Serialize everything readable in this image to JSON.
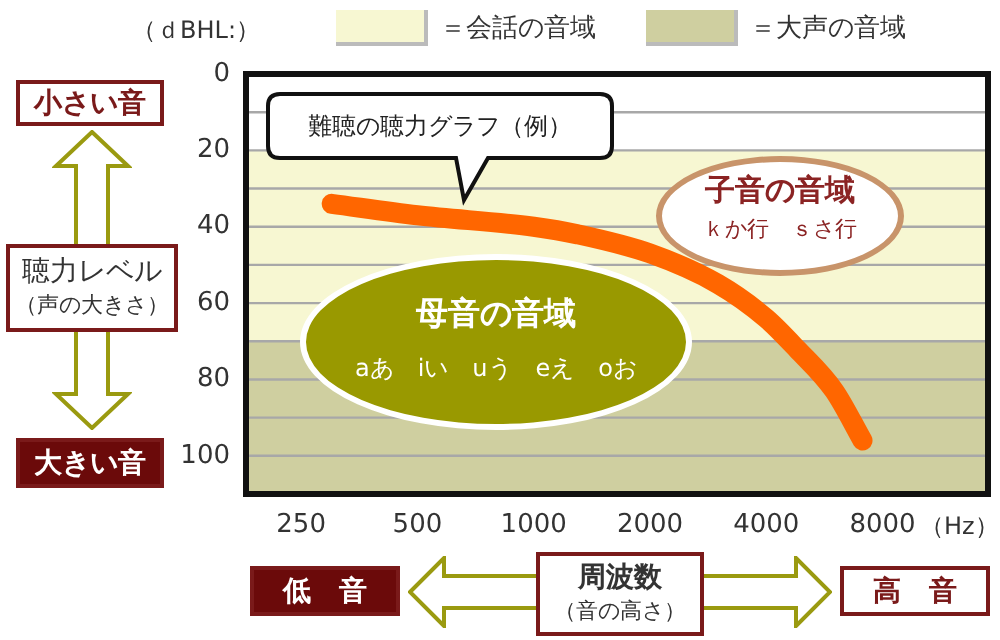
{
  "chart_data": {
    "type": "line",
    "xlabel": "周波数",
    "ylabel": "聴力レベル",
    "x": [
      300,
      500,
      1000,
      1300,
      2000,
      3000,
      4000,
      4800,
      6000,
      7100
    ],
    "series": [
      {
        "color": "#ff6600",
        "values": [
          34,
          37,
          40,
          42,
          47,
          55,
          64,
          72,
          83,
          96
        ]
      }
    ],
    "log": "x",
    "xlim": [
      180,
      15000
    ],
    "xticks": [
      250,
      500,
      1000,
      2000,
      4000,
      8000
    ],
    "ylim": [
      110,
      0
    ],
    "yticks": [
      0,
      {
        "value": 10,
        "label": null
      },
      20,
      {
        "value": 30,
        "label": null
      },
      40,
      {
        "value": 50,
        "label": null
      },
      60,
      {
        "value": 70,
        "label": null
      },
      80,
      {
        "value": 90,
        "label": null
      },
      100
    ],
    "grid": "y",
    "marker": "none",
    "line_style": "solid",
    "legend": "top",
    "bands": [
      {
        "axis": "y",
        "from": 20,
        "to": 70,
        "label": "＝会話の音域",
        "color": "#f7f7d2"
      },
      {
        "axis": "y",
        "from": 70,
        "to": 110,
        "label": "＝大声の音域",
        "color": "#cfcfa0"
      }
    ],
    "annotations": [
      "（ｄBHL:）",
      "（Hz）",
      "小さい音",
      "大きい音",
      "（声の大きさ）",
      "低　音",
      "高　音",
      "（音の高さ）",
      "難聴の聴力グラフ（例）",
      "子音の音域",
      "ｋか行　ｓさ行",
      "母音の音域",
      "aあ　iい　uう　eえ　oお"
    ]
  }
}
